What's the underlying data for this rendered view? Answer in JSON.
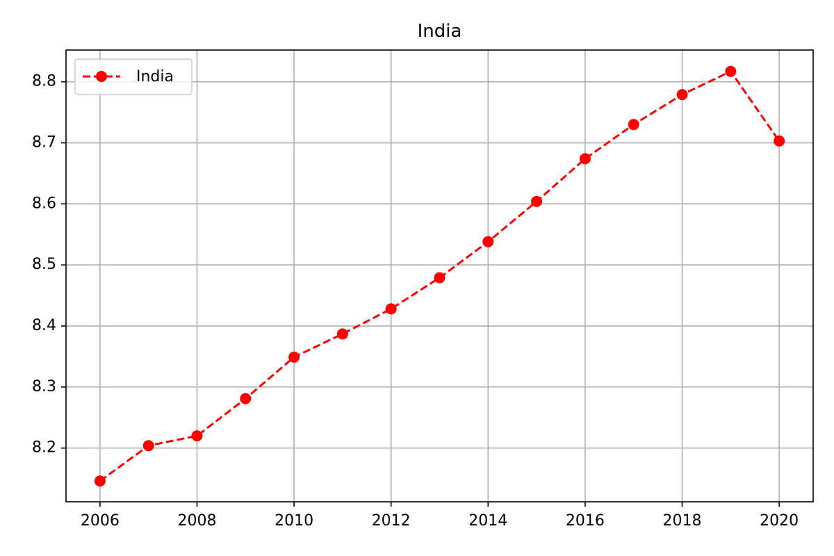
{
  "chart_data": {
    "type": "line",
    "title": "India",
    "xlabel": "",
    "ylabel": "",
    "xlim": [
      2005.3,
      2020.7
    ],
    "ylim": [
      8.112,
      8.852
    ],
    "x_ticks": [
      2006,
      2008,
      2010,
      2012,
      2014,
      2016,
      2018,
      2020
    ],
    "y_ticks": [
      8.2,
      8.3,
      8.4,
      8.5,
      8.6,
      8.7,
      8.8
    ],
    "grid": true,
    "legend_position": "top-left",
    "series": [
      {
        "name": "India",
        "color": "#ff0000",
        "line_style": "dashed",
        "marker": "circle",
        "x": [
          2006,
          2007,
          2008,
          2009,
          2010,
          2011,
          2012,
          2013,
          2014,
          2015,
          2016,
          2017,
          2018,
          2019,
          2020
        ],
        "y": [
          8.146,
          8.204,
          8.22,
          8.281,
          8.349,
          8.387,
          8.428,
          8.479,
          8.538,
          8.604,
          8.674,
          8.73,
          8.779,
          8.817,
          8.703
        ]
      }
    ]
  }
}
